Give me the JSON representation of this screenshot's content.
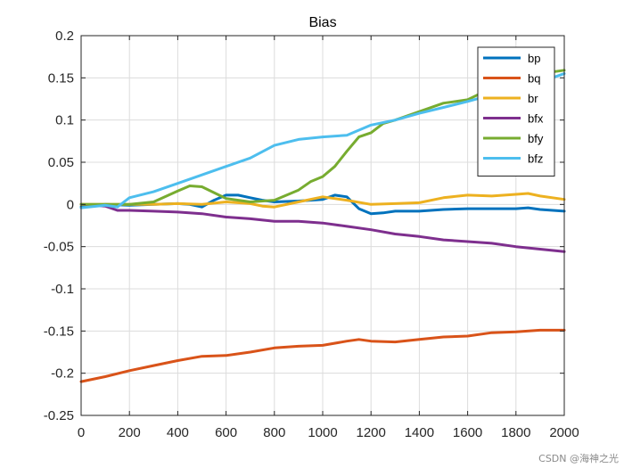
{
  "chart_data": {
    "type": "line",
    "title": "Bias",
    "xlabel": "",
    "ylabel": "",
    "xlim": [
      0,
      2000
    ],
    "ylim": [
      -0.25,
      0.2
    ],
    "xticks": [
      0,
      200,
      400,
      600,
      800,
      1000,
      1200,
      1400,
      1600,
      1800,
      2000
    ],
    "yticks": [
      -0.25,
      -0.2,
      -0.15,
      -0.1,
      -0.05,
      0,
      0.05,
      0.1,
      0.15,
      0.2
    ],
    "ytick_labels": [
      "-0.25",
      "-0.2",
      "-0.15",
      "-0.1",
      "-0.05",
      "0",
      "0.05",
      "0.1",
      "0.15",
      "0.2"
    ],
    "grid": true,
    "legend_position": "top-right",
    "series": [
      {
        "name": "bp",
        "color": "#0072BD",
        "x": [
          0,
          100,
          200,
          300,
          400,
          450,
          500,
          550,
          600,
          650,
          700,
          750,
          800,
          900,
          1000,
          1050,
          1100,
          1150,
          1200,
          1250,
          1300,
          1400,
          1500,
          1600,
          1700,
          1800,
          1850,
          1900,
          2000
        ],
        "y": [
          -0.003,
          0,
          -0.001,
          0,
          0.001,
          0,
          -0.003,
          0.005,
          0.011,
          0.011,
          0.008,
          0.005,
          0.003,
          0.004,
          0.006,
          0.011,
          0.009,
          -0.005,
          -0.011,
          -0.01,
          -0.008,
          -0.008,
          -0.006,
          -0.005,
          -0.005,
          -0.005,
          -0.004,
          -0.006,
          -0.008
        ]
      },
      {
        "name": "bq",
        "color": "#D95319",
        "x": [
          0,
          100,
          200,
          300,
          400,
          500,
          600,
          700,
          800,
          900,
          1000,
          1100,
          1150,
          1200,
          1300,
          1400,
          1500,
          1600,
          1700,
          1800,
          1900,
          2000
        ],
        "y": [
          -0.21,
          -0.204,
          -0.197,
          -0.191,
          -0.185,
          -0.18,
          -0.179,
          -0.175,
          -0.17,
          -0.168,
          -0.167,
          -0.162,
          -0.16,
          -0.162,
          -0.163,
          -0.16,
          -0.157,
          -0.156,
          -0.152,
          -0.151,
          -0.149,
          -0.149
        ]
      },
      {
        "name": "br",
        "color": "#EDB120",
        "x": [
          0,
          200,
          300,
          400,
          500,
          600,
          700,
          750,
          800,
          900,
          1000,
          1100,
          1200,
          1300,
          1400,
          1500,
          1600,
          1700,
          1800,
          1850,
          1900,
          2000
        ],
        "y": [
          0,
          0,
          0,
          0.001,
          0,
          0.003,
          0.001,
          -0.002,
          -0.003,
          0.003,
          0.009,
          0.005,
          0,
          0.001,
          0.002,
          0.008,
          0.011,
          0.01,
          0.012,
          0.013,
          0.01,
          0.006
        ]
      },
      {
        "name": "bfx",
        "color": "#7E2F8E",
        "x": [
          0,
          100,
          150,
          200,
          300,
          400,
          500,
          600,
          700,
          800,
          900,
          1000,
          1100,
          1200,
          1300,
          1400,
          1500,
          1600,
          1700,
          1800,
          1900,
          2000
        ],
        "y": [
          0,
          -0.002,
          -0.007,
          -0.007,
          -0.008,
          -0.009,
          -0.011,
          -0.015,
          -0.017,
          -0.02,
          -0.02,
          -0.022,
          -0.026,
          -0.03,
          -0.035,
          -0.038,
          -0.042,
          -0.044,
          -0.046,
          -0.05,
          -0.053,
          -0.056
        ]
      },
      {
        "name": "bfy",
        "color": "#77AC30",
        "x": [
          0,
          100,
          200,
          300,
          400,
          450,
          500,
          550,
          600,
          700,
          800,
          900,
          950,
          1000,
          1050,
          1100,
          1150,
          1200,
          1250,
          1300,
          1400,
          1500,
          1600,
          1650,
          1700,
          1800,
          1900,
          2000
        ],
        "y": [
          0,
          0,
          0,
          0.003,
          0.016,
          0.022,
          0.021,
          0.014,
          0.007,
          0.003,
          0.005,
          0.017,
          0.027,
          0.033,
          0.045,
          0.063,
          0.08,
          0.085,
          0.096,
          0.1,
          0.11,
          0.12,
          0.124,
          0.131,
          0.14,
          0.148,
          0.155,
          0.159
        ]
      },
      {
        "name": "bfz",
        "color": "#4DBEEE",
        "x": [
          0,
          100,
          150,
          200,
          300,
          400,
          500,
          600,
          700,
          800,
          900,
          1000,
          1100,
          1200,
          1300,
          1400,
          1500,
          1600,
          1700,
          1800,
          1900,
          2000
        ],
        "y": [
          -0.004,
          -0.001,
          -0.003,
          0.008,
          0.015,
          0.025,
          0.035,
          0.045,
          0.055,
          0.07,
          0.077,
          0.08,
          0.082,
          0.094,
          0.1,
          0.108,
          0.115,
          0.122,
          0.13,
          0.137,
          0.145,
          0.155
        ]
      }
    ]
  },
  "watermark": "CSDN @海神之光"
}
